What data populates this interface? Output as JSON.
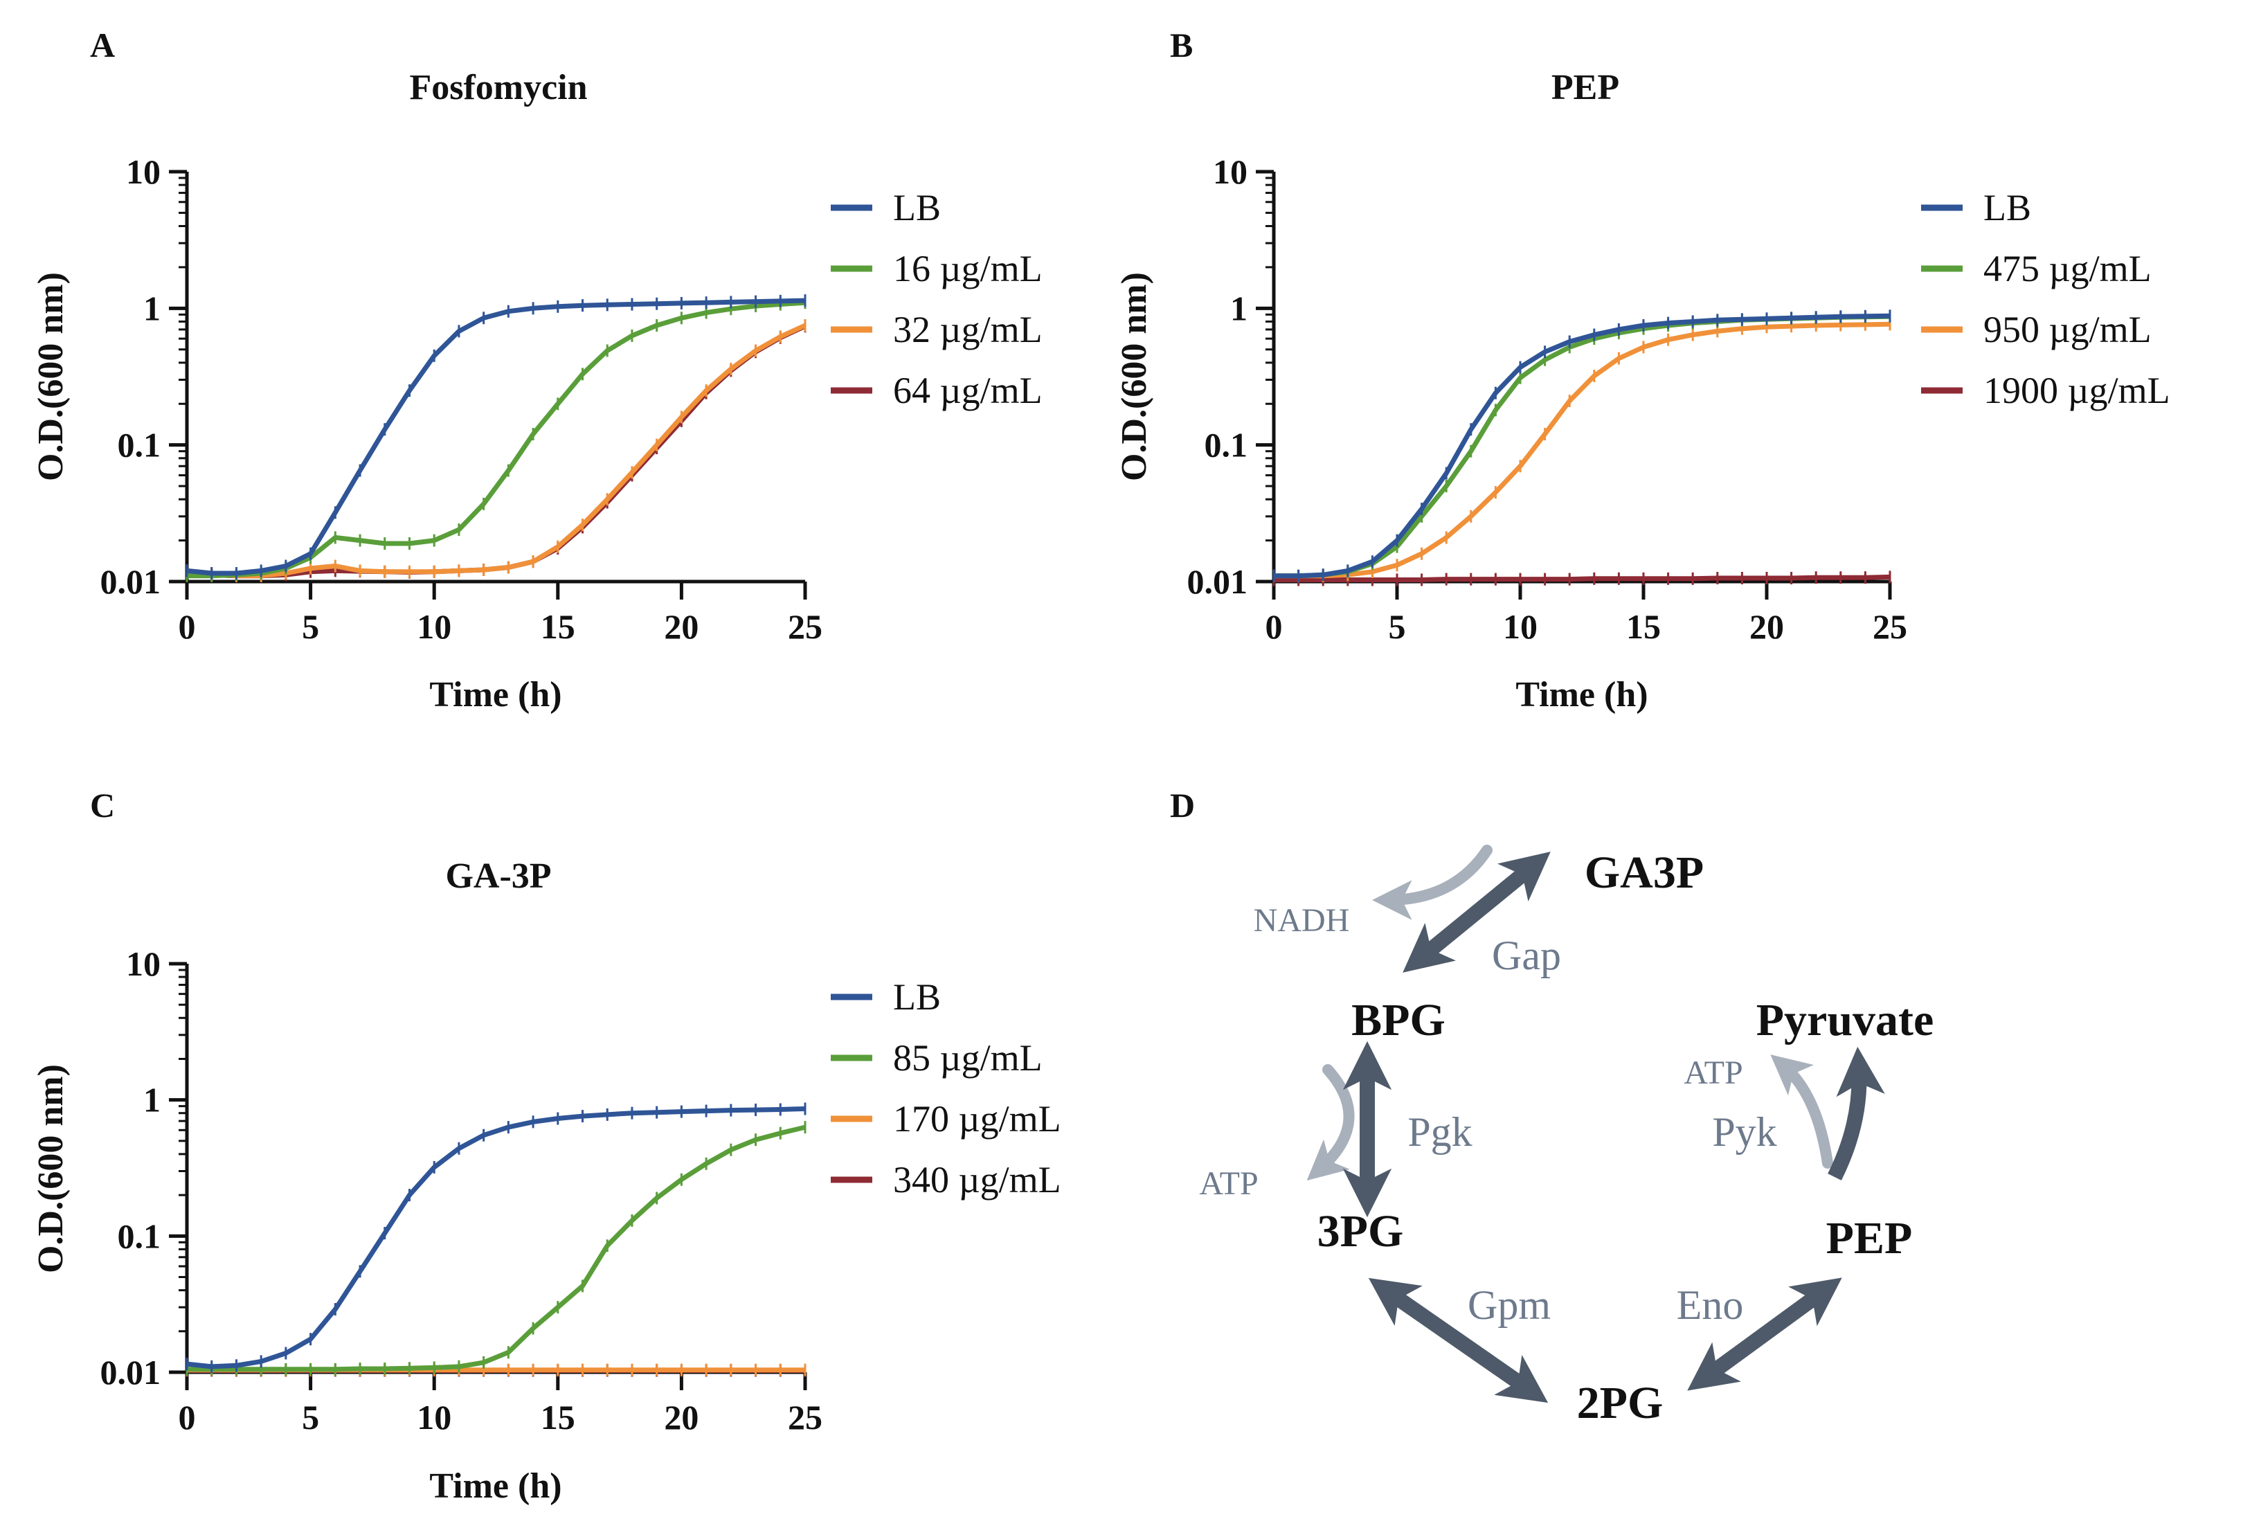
{
  "colors": {
    "LB": "#2f5597",
    "green": "#5a9e3a",
    "orange": "#f0913a",
    "red": "#8e2b35",
    "axis": "#111111",
    "arrow_dark": "#4e5a69",
    "arrow_light": "#a8b0bb",
    "cofactor": "#6d7a8c"
  },
  "chart_data": [
    {
      "panel": "A",
      "title": "Fosfomycin",
      "type": "line",
      "xlabel": "Time (h)",
      "ylabel": "O.D.(600 nm)",
      "yscale": "log",
      "xlim": [
        0,
        25
      ],
      "ylim": [
        0.01,
        10
      ],
      "xticks": [
        "0",
        "5",
        "10",
        "15",
        "20",
        "25"
      ],
      "yticks": [
        "0.01",
        "0.1",
        "1",
        "10"
      ],
      "x": [
        0,
        1,
        2,
        3,
        4,
        5,
        6,
        7,
        8,
        9,
        10,
        11,
        12,
        13,
        14,
        15,
        16,
        17,
        18,
        19,
        20,
        21,
        22,
        23,
        24,
        25
      ],
      "series": [
        {
          "name": "LB",
          "color_key": "LB",
          "values": [
            0.012,
            0.0115,
            0.0115,
            0.012,
            0.013,
            0.016,
            0.032,
            0.065,
            0.13,
            0.25,
            0.45,
            0.68,
            0.85,
            0.95,
            1.0,
            1.03,
            1.05,
            1.06,
            1.07,
            1.08,
            1.09,
            1.1,
            1.11,
            1.12,
            1.13,
            1.14
          ]
        },
        {
          "name": "16 µg/mL",
          "color_key": "green",
          "values": [
            0.011,
            0.011,
            0.0112,
            0.0115,
            0.0125,
            0.015,
            0.021,
            0.02,
            0.019,
            0.019,
            0.02,
            0.024,
            0.037,
            0.065,
            0.12,
            0.2,
            0.33,
            0.49,
            0.63,
            0.75,
            0.85,
            0.93,
            0.99,
            1.04,
            1.07,
            1.1
          ]
        },
        {
          "name": "32 µg/mL",
          "color_key": "orange",
          "values": [
            0.012,
            0.0115,
            0.011,
            0.011,
            0.0115,
            0.0125,
            0.013,
            0.012,
            0.0118,
            0.0118,
            0.0118,
            0.012,
            0.0122,
            0.0127,
            0.014,
            0.018,
            0.026,
            0.04,
            0.063,
            0.1,
            0.16,
            0.25,
            0.36,
            0.49,
            0.62,
            0.75
          ]
        },
        {
          "name": "64 µg/mL",
          "color_key": "red",
          "values": [
            0.0115,
            0.0112,
            0.011,
            0.011,
            0.0112,
            0.0118,
            0.012,
            0.0119,
            0.0118,
            0.0117,
            0.0118,
            0.012,
            0.0122,
            0.0127,
            0.014,
            0.0175,
            0.025,
            0.038,
            0.06,
            0.095,
            0.15,
            0.24,
            0.35,
            0.48,
            0.61,
            0.74
          ]
        }
      ]
    },
    {
      "panel": "B",
      "title": "PEP",
      "type": "line",
      "xlabel": "Time (h)",
      "ylabel": "O.D.(600 nm)",
      "yscale": "log",
      "xlim": [
        0,
        25
      ],
      "ylim": [
        0.01,
        10
      ],
      "xticks": [
        "0",
        "5",
        "10",
        "15",
        "20",
        "25"
      ],
      "yticks": [
        "0.01",
        "0.1",
        "1",
        "10"
      ],
      "x": [
        0,
        1,
        2,
        3,
        4,
        5,
        6,
        7,
        8,
        9,
        10,
        11,
        12,
        13,
        14,
        15,
        16,
        17,
        18,
        19,
        20,
        21,
        22,
        23,
        24,
        25
      ],
      "series": [
        {
          "name": "LB",
          "color_key": "LB",
          "values": [
            0.011,
            0.011,
            0.0112,
            0.012,
            0.014,
            0.02,
            0.034,
            0.062,
            0.13,
            0.24,
            0.37,
            0.48,
            0.57,
            0.64,
            0.7,
            0.75,
            0.78,
            0.8,
            0.82,
            0.83,
            0.84,
            0.85,
            0.86,
            0.87,
            0.875,
            0.88
          ]
        },
        {
          "name": "475 µg/mL",
          "color_key": "green",
          "values": [
            0.011,
            0.011,
            0.0112,
            0.0118,
            0.0135,
            0.018,
            0.03,
            0.05,
            0.09,
            0.18,
            0.31,
            0.42,
            0.52,
            0.6,
            0.66,
            0.71,
            0.75,
            0.78,
            0.8,
            0.82,
            0.83,
            0.84,
            0.85,
            0.86,
            0.865,
            0.87
          ]
        },
        {
          "name": "950 µg/mL",
          "color_key": "orange",
          "values": [
            0.011,
            0.011,
            0.011,
            0.0112,
            0.0118,
            0.0132,
            0.016,
            0.021,
            0.03,
            0.045,
            0.07,
            0.12,
            0.21,
            0.32,
            0.43,
            0.52,
            0.59,
            0.64,
            0.68,
            0.71,
            0.73,
            0.74,
            0.75,
            0.755,
            0.76,
            0.765
          ]
        },
        {
          "name": "1900 µg/mL",
          "color_key": "red",
          "values": [
            0.0103,
            0.0103,
            0.0103,
            0.0103,
            0.0103,
            0.0103,
            0.0103,
            0.0104,
            0.0104,
            0.0104,
            0.0104,
            0.0104,
            0.0104,
            0.0105,
            0.0105,
            0.0105,
            0.0105,
            0.0105,
            0.0106,
            0.0106,
            0.0106,
            0.0106,
            0.0107,
            0.0107,
            0.0107,
            0.0108
          ]
        }
      ]
    },
    {
      "panel": "C",
      "title": "GA-3P",
      "type": "line",
      "xlabel": "Time (h)",
      "ylabel": "O.D.(600 nm)",
      "yscale": "log",
      "xlim": [
        0,
        25
      ],
      "ylim": [
        0.01,
        10
      ],
      "xticks": [
        "0",
        "5",
        "10",
        "15",
        "20",
        "25"
      ],
      "yticks": [
        "0.01",
        "0.1",
        "1",
        "10"
      ],
      "x": [
        0,
        1,
        2,
        3,
        4,
        5,
        6,
        7,
        8,
        9,
        10,
        11,
        12,
        13,
        14,
        15,
        16,
        17,
        18,
        19,
        20,
        21,
        22,
        23,
        24,
        25
      ],
      "series": [
        {
          "name": "LB",
          "color_key": "LB",
          "values": [
            0.0115,
            0.011,
            0.0112,
            0.012,
            0.0138,
            0.0175,
            0.029,
            0.055,
            0.105,
            0.2,
            0.32,
            0.44,
            0.55,
            0.63,
            0.69,
            0.73,
            0.76,
            0.78,
            0.8,
            0.81,
            0.82,
            0.83,
            0.84,
            0.845,
            0.85,
            0.86
          ]
        },
        {
          "name": "85 µg/mL",
          "color_key": "green",
          "values": [
            0.0105,
            0.0105,
            0.0105,
            0.0105,
            0.0105,
            0.0105,
            0.0105,
            0.0106,
            0.0106,
            0.0107,
            0.0108,
            0.011,
            0.0118,
            0.014,
            0.021,
            0.03,
            0.043,
            0.085,
            0.13,
            0.19,
            0.26,
            0.34,
            0.43,
            0.51,
            0.57,
            0.63
          ]
        },
        {
          "name": "170 µg/mL",
          "color_key": "orange",
          "values": [
            0.0104,
            0.0104,
            0.0104,
            0.0104,
            0.0104,
            0.0104,
            0.0104,
            0.0104,
            0.0104,
            0.0104,
            0.0104,
            0.0104,
            0.0104,
            0.0104,
            0.0104,
            0.0104,
            0.0104,
            0.0104,
            0.0104,
            0.0104,
            0.0104,
            0.0104,
            0.0104,
            0.0104,
            0.0104,
            0.0104
          ]
        },
        {
          "name": "340 µg/mL",
          "color_key": "red",
          "values": [
            0.0103,
            0.0103,
            0.0103,
            0.0103,
            0.0103,
            0.0103,
            0.0103,
            0.0103,
            0.0103,
            0.0103,
            0.0103,
            0.0103,
            0.0103,
            0.0103,
            0.0103,
            0.0103,
            0.0103,
            0.0103,
            0.0103,
            0.0103,
            0.0103,
            0.0103,
            0.0103,
            0.0103,
            0.0103,
            0.0103
          ]
        }
      ]
    }
  ],
  "diagram": {
    "panel": "D",
    "metabolites": {
      "ga3p": "GA3P",
      "bpg": "BPG",
      "pg3": "3PG",
      "pg2": "2PG",
      "pep": "PEP",
      "pyruvate": "Pyruvate"
    },
    "enzymes": {
      "gap": "Gap",
      "pgk": "Pgk",
      "gpm": "Gpm",
      "eno": "Eno",
      "pyk": "Pyk"
    },
    "cofactors": {
      "nadh": "NADH",
      "atp_pgk": "ATP",
      "atp_pyk": "ATP"
    }
  }
}
